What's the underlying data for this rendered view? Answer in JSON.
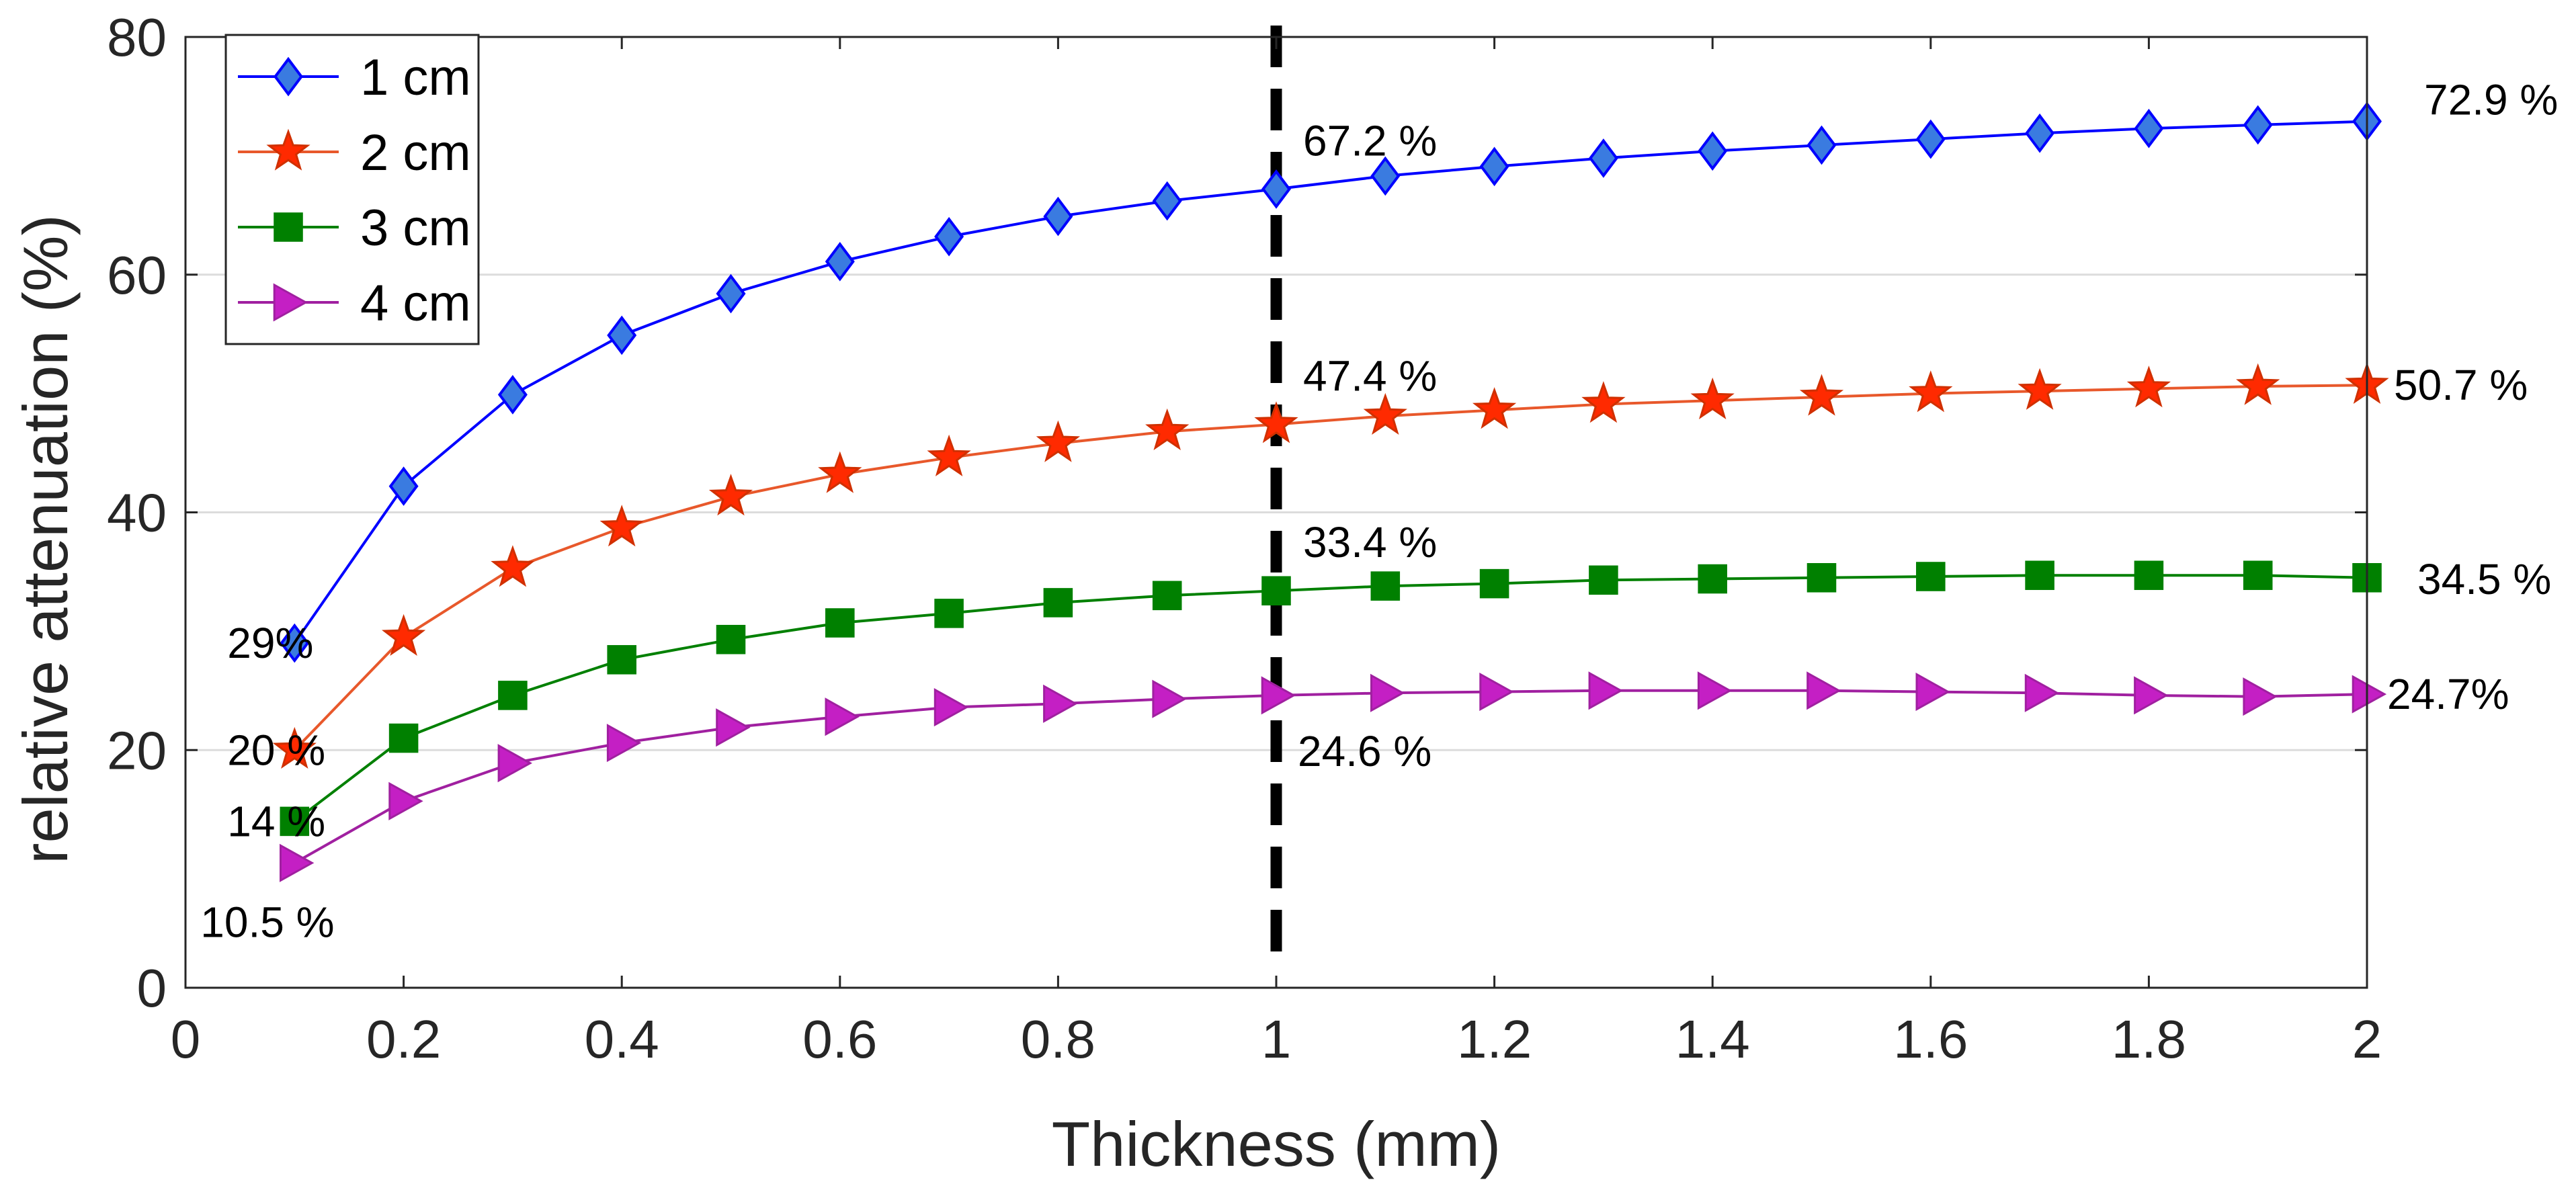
{
  "chart_data": {
    "type": "line",
    "title": "",
    "xlabel": "Thickness (mm)",
    "ylabel": "relative attenuation (%)",
    "xlim": [
      0,
      2
    ],
    "ylim": [
      0,
      80
    ],
    "xticks": [
      "0",
      "0.2",
      "0.4",
      "0.6",
      "0.8",
      "1",
      "1.2",
      "1.4",
      "1.6",
      "1.8",
      "2"
    ],
    "yticks": [
      "0",
      "20",
      "40",
      "60",
      "80"
    ],
    "grid": "horizontal",
    "legend_position": "top-left",
    "reference_line": {
      "x": 1,
      "style": "dashed",
      "color": "#000000"
    },
    "x": [
      0.1,
      0.2,
      0.3,
      0.4,
      0.5,
      0.6,
      0.7,
      0.8,
      0.9,
      1.0,
      1.1,
      1.2,
      1.3,
      1.4,
      1.5,
      1.6,
      1.7,
      1.8,
      1.9,
      2.0
    ],
    "series": [
      {
        "name": "1 cm",
        "color": "#0000ff",
        "marker": "diamond",
        "marker_fill": "#3a7be0",
        "values": [
          29,
          42.2,
          49.9,
          54.9,
          58.4,
          61.1,
          63.2,
          64.9,
          66.2,
          67.2,
          68.3,
          69.1,
          69.8,
          70.4,
          70.9,
          71.4,
          71.9,
          72.3,
          72.6,
          72.9
        ]
      },
      {
        "name": "2 cm",
        "color": "#e8582b",
        "marker": "star",
        "marker_fill": "#ff2a00",
        "values": [
          20,
          29.5,
          35.3,
          38.7,
          41.3,
          43.2,
          44.6,
          45.8,
          46.8,
          47.4,
          48.1,
          48.6,
          49.1,
          49.4,
          49.7,
          50.0,
          50.2,
          50.4,
          50.6,
          50.7
        ]
      },
      {
        "name": "3 cm",
        "color": "#008000",
        "marker": "square",
        "marker_fill": "#008000",
        "values": [
          14,
          21.0,
          24.6,
          27.6,
          29.3,
          30.7,
          31.5,
          32.4,
          33.0,
          33.4,
          33.8,
          34.0,
          34.3,
          34.4,
          34.5,
          34.6,
          34.7,
          34.7,
          34.7,
          34.5
        ]
      },
      {
        "name": "4 cm",
        "color": "#a020a0",
        "marker": "triangle-right",
        "marker_fill": "#c41fc4",
        "values": [
          10.5,
          15.7,
          18.9,
          20.6,
          21.9,
          22.8,
          23.6,
          23.9,
          24.3,
          24.6,
          24.8,
          24.9,
          25.0,
          25.0,
          25.0,
          24.9,
          24.8,
          24.6,
          24.5,
          24.7
        ]
      }
    ],
    "annotations": [
      {
        "text": "29%",
        "x": 0.1,
        "y": 29,
        "anchor": "left"
      },
      {
        "text": "20 %",
        "x": 0.1,
        "y": 20,
        "anchor": "left"
      },
      {
        "text": "14 %",
        "x": 0.1,
        "y": 14,
        "anchor": "left"
      },
      {
        "text": "10.5 %",
        "x": 0.1,
        "y": 10.5,
        "anchor": "below"
      },
      {
        "text": "67.2 %",
        "x": 1.0,
        "y": 67.2,
        "anchor": "above-right"
      },
      {
        "text": "47.4 %",
        "x": 1.0,
        "y": 47.4,
        "anchor": "above-right"
      },
      {
        "text": "33.4 %",
        "x": 1.0,
        "y": 33.4,
        "anchor": "above-right"
      },
      {
        "text": "24.6 %",
        "x": 1.0,
        "y": 24.6,
        "anchor": "below-right"
      },
      {
        "text": "72.9 %",
        "x": 2.0,
        "y": 72.9,
        "anchor": "right"
      },
      {
        "text": "50.7 %",
        "x": 2.0,
        "y": 50.7,
        "anchor": "right"
      },
      {
        "text": "34.5 %",
        "x": 2.0,
        "y": 34.5,
        "anchor": "right"
      },
      {
        "text": "24.7%",
        "x": 2.0,
        "y": 24.7,
        "anchor": "right"
      }
    ]
  }
}
